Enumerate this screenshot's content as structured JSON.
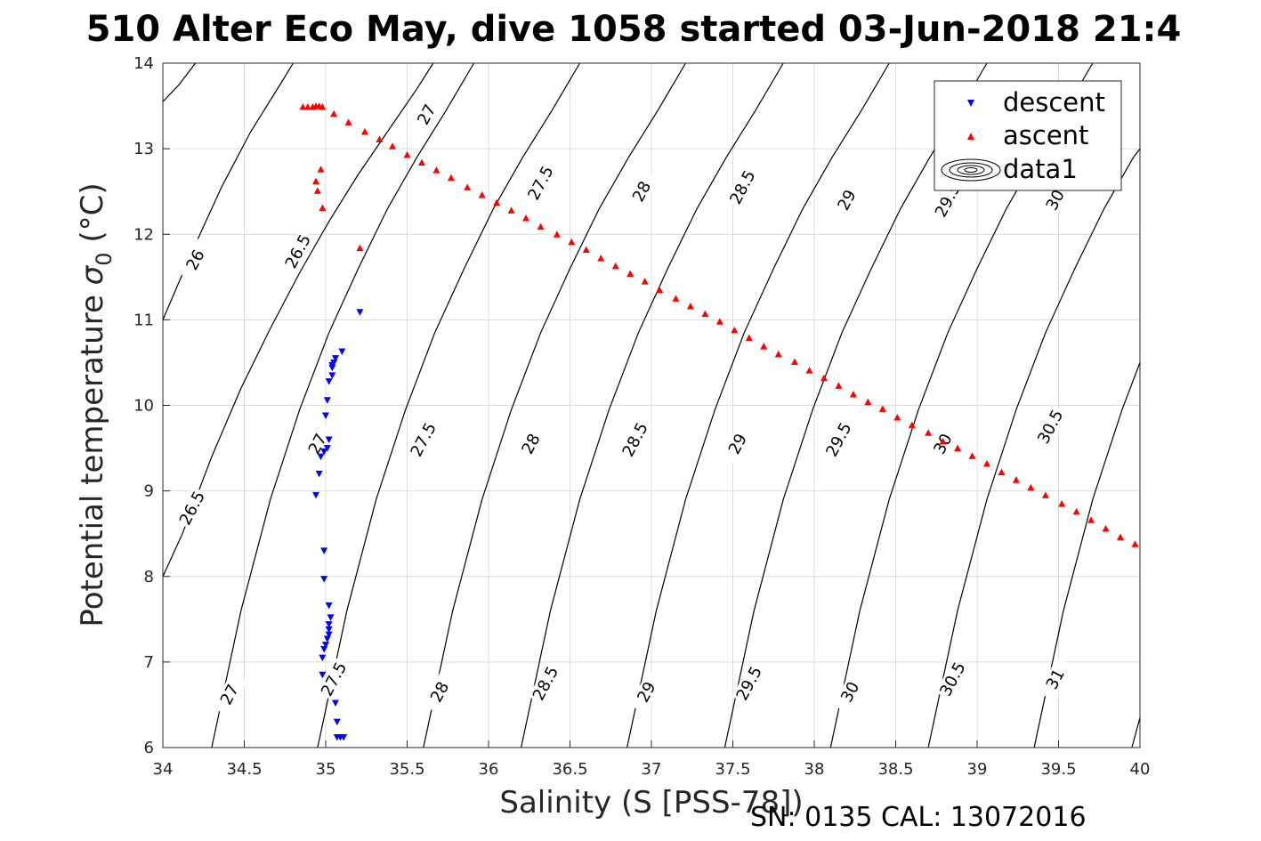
{
  "title": "510 Alter Eco May, dive 1058 started 03-Jun-2018 21:4",
  "footer": "SN: 0135  CAL: 13072016",
  "chart_data": {
    "type": "scatter",
    "xlabel": "Salinity (S [PSS-78])",
    "ylabel_main": "Potential temperature ",
    "ylabel_sym": "σ",
    "ylabel_sub": "0",
    "ylabel_unit": " (°C)",
    "xlim": [
      34,
      40
    ],
    "ylim": [
      6,
      14
    ],
    "xticks": [
      "34",
      "34.5",
      "35",
      "35.5",
      "36",
      "36.5",
      "37",
      "37.5",
      "38",
      "38.5",
      "39",
      "39.5",
      "40"
    ],
    "yticks": [
      "6",
      "7",
      "8",
      "9",
      "10",
      "11",
      "12",
      "13",
      "14"
    ],
    "grid": true,
    "legend_position": "top-right",
    "legend": [
      {
        "label": "descent",
        "marker": "triangle-down",
        "color": "#0000ff"
      },
      {
        "label": "ascent",
        "marker": "triangle-up",
        "color": "#ff0000"
      },
      {
        "label": "data1",
        "marker": "contour",
        "color": "#000000"
      }
    ],
    "series": [
      {
        "name": "descent",
        "color": "#0000ff",
        "points": [
          [
            35.21,
            11.09
          ],
          [
            35.1,
            10.63
          ],
          [
            35.06,
            10.55
          ],
          [
            35.05,
            10.5
          ],
          [
            35.04,
            10.47
          ],
          [
            35.04,
            10.44
          ],
          [
            35.04,
            10.35
          ],
          [
            35.02,
            10.28
          ],
          [
            35.01,
            10.06
          ],
          [
            35.0,
            9.88
          ],
          [
            35.02,
            9.6
          ],
          [
            35.01,
            9.5
          ],
          [
            34.99,
            9.46
          ],
          [
            34.97,
            9.4
          ],
          [
            34.96,
            9.2
          ],
          [
            34.94,
            8.95
          ],
          [
            34.99,
            8.3
          ],
          [
            34.99,
            7.97
          ],
          [
            35.02,
            7.66
          ],
          [
            35.03,
            7.52
          ],
          [
            35.02,
            7.44
          ],
          [
            35.02,
            7.38
          ],
          [
            35.02,
            7.32
          ],
          [
            35.01,
            7.27
          ],
          [
            35.0,
            7.2
          ],
          [
            34.99,
            7.15
          ],
          [
            34.98,
            7.05
          ],
          [
            34.98,
            6.85
          ],
          [
            35.06,
            6.52
          ],
          [
            35.07,
            6.3
          ],
          [
            35.07,
            6.12
          ],
          [
            35.09,
            6.12
          ],
          [
            35.11,
            6.12
          ]
        ]
      },
      {
        "name": "ascent",
        "color": "#ff0000",
        "points": [
          [
            34.86,
            13.49
          ],
          [
            34.89,
            13.49
          ],
          [
            34.92,
            13.49
          ],
          [
            34.94,
            13.5
          ],
          [
            34.96,
            13.5
          ],
          [
            34.98,
            13.49
          ],
          [
            35.05,
            13.41
          ],
          [
            35.14,
            13.31
          ],
          [
            35.24,
            13.2
          ],
          [
            35.33,
            13.11
          ],
          [
            35.41,
            13.03
          ],
          [
            35.5,
            12.93
          ],
          [
            35.59,
            12.84
          ],
          [
            35.68,
            12.75
          ],
          [
            35.77,
            12.66
          ],
          [
            35.87,
            12.55
          ],
          [
            35.96,
            12.46
          ],
          [
            36.05,
            12.37
          ],
          [
            36.14,
            12.28
          ],
          [
            36.23,
            12.19
          ],
          [
            36.32,
            12.09
          ],
          [
            36.42,
            12.0
          ],
          [
            36.51,
            11.91
          ],
          [
            36.6,
            11.82
          ],
          [
            36.69,
            11.72
          ],
          [
            36.78,
            11.63
          ],
          [
            36.87,
            11.54
          ],
          [
            36.96,
            11.45
          ],
          [
            37.05,
            11.35
          ],
          [
            37.15,
            11.25
          ],
          [
            37.24,
            11.16
          ],
          [
            37.33,
            11.07
          ],
          [
            37.42,
            10.98
          ],
          [
            37.51,
            10.88
          ],
          [
            37.6,
            10.79
          ],
          [
            37.69,
            10.69
          ],
          [
            37.78,
            10.6
          ],
          [
            37.88,
            10.51
          ],
          [
            37.97,
            10.41
          ],
          [
            38.06,
            10.32
          ],
          [
            38.15,
            10.23
          ],
          [
            38.24,
            10.13
          ],
          [
            38.33,
            10.04
          ],
          [
            38.42,
            9.96
          ],
          [
            38.51,
            9.86
          ],
          [
            38.6,
            9.77
          ],
          [
            38.7,
            9.68
          ],
          [
            38.79,
            9.58
          ],
          [
            38.88,
            9.5
          ],
          [
            38.97,
            9.41
          ],
          [
            39.06,
            9.32
          ],
          [
            39.15,
            9.22
          ],
          [
            39.24,
            9.13
          ],
          [
            39.33,
            9.04
          ],
          [
            39.42,
            8.95
          ],
          [
            39.52,
            8.85
          ],
          [
            39.61,
            8.76
          ],
          [
            39.7,
            8.66
          ],
          [
            39.79,
            8.56
          ],
          [
            39.88,
            8.46
          ],
          [
            39.97,
            8.38
          ],
          [
            34.94,
            12.62
          ],
          [
            34.95,
            12.51
          ],
          [
            34.97,
            12.76
          ],
          [
            34.98,
            12.31
          ],
          [
            35.21,
            11.84
          ]
        ]
      }
    ],
    "contours": [
      {
        "pts": [
          [
            34.3,
            6
          ],
          [
            34.48,
            7.6
          ],
          [
            34.66,
            8.9
          ],
          [
            34.84,
            9.95
          ],
          [
            35.02,
            10.85
          ],
          [
            35.2,
            11.6
          ],
          [
            35.38,
            12.3
          ],
          [
            35.56,
            12.9
          ],
          [
            35.74,
            13.45
          ],
          [
            35.91,
            14
          ]
        ],
        "labels": [
          {
            "text": "27",
            "at": [
              34.41,
              6.62
            ]
          },
          {
            "text": "27",
            "at": [
              34.95,
              9.55
            ]
          },
          {
            "text": "27",
            "at": [
              35.62,
              13.4
            ]
          }
        ]
      },
      {
        "pts": [
          [
            34.95,
            6
          ],
          [
            35.13,
            7.6
          ],
          [
            35.31,
            8.9
          ],
          [
            35.49,
            9.95
          ],
          [
            35.67,
            10.85
          ],
          [
            35.85,
            11.6
          ],
          [
            36.03,
            12.3
          ],
          [
            36.21,
            12.9
          ],
          [
            36.39,
            13.45
          ],
          [
            36.56,
            14
          ]
        ],
        "labels": [
          {
            "text": "27.5",
            "at": [
              35.05,
              6.8
            ]
          },
          {
            "text": "27.5",
            "at": [
              35.6,
              9.6
            ]
          },
          {
            "text": "27.5",
            "at": [
              36.32,
              12.6
            ]
          }
        ]
      },
      {
        "pts": [
          [
            35.6,
            6
          ],
          [
            35.78,
            7.6
          ],
          [
            35.96,
            8.9
          ],
          [
            36.14,
            9.95
          ],
          [
            36.32,
            10.85
          ],
          [
            36.5,
            11.6
          ],
          [
            36.68,
            12.3
          ],
          [
            36.86,
            12.9
          ],
          [
            37.04,
            13.45
          ],
          [
            37.21,
            14
          ]
        ],
        "labels": [
          {
            "text": "28",
            "at": [
              35.7,
              6.65
            ]
          },
          {
            "text": "28",
            "at": [
              36.26,
              9.55
            ]
          },
          {
            "text": "28",
            "at": [
              36.94,
              12.5
            ]
          }
        ]
      },
      {
        "pts": [
          [
            36.2,
            6
          ],
          [
            36.38,
            7.6
          ],
          [
            36.56,
            8.9
          ],
          [
            36.74,
            9.95
          ],
          [
            36.92,
            10.85
          ],
          [
            37.1,
            11.6
          ],
          [
            37.28,
            12.3
          ],
          [
            37.46,
            12.9
          ],
          [
            37.64,
            13.45
          ],
          [
            37.81,
            14
          ]
        ],
        "labels": [
          {
            "text": "28.5",
            "at": [
              36.35,
              6.75
            ]
          },
          {
            "text": "28.5",
            "at": [
              36.9,
              9.6
            ]
          },
          {
            "text": "28.5",
            "at": [
              37.56,
              12.55
            ]
          }
        ]
      },
      {
        "pts": [
          [
            36.85,
            6
          ],
          [
            37.03,
            7.6
          ],
          [
            37.21,
            8.9
          ],
          [
            37.39,
            9.95
          ],
          [
            37.57,
            10.85
          ],
          [
            37.75,
            11.6
          ],
          [
            37.93,
            12.3
          ],
          [
            38.11,
            12.9
          ],
          [
            38.29,
            13.45
          ],
          [
            38.46,
            14
          ]
        ],
        "labels": [
          {
            "text": "29",
            "at": [
              36.97,
              6.65
            ]
          },
          {
            "text": "29",
            "at": [
              37.53,
              9.55
            ]
          },
          {
            "text": "29",
            "at": [
              38.2,
              12.4
            ]
          }
        ]
      },
      {
        "pts": [
          [
            37.45,
            6
          ],
          [
            37.63,
            7.6
          ],
          [
            37.81,
            8.9
          ],
          [
            37.99,
            9.95
          ],
          [
            38.17,
            10.85
          ],
          [
            38.35,
            11.6
          ],
          [
            38.53,
            12.3
          ],
          [
            38.71,
            12.9
          ],
          [
            38.89,
            13.45
          ],
          [
            39.06,
            14
          ]
        ],
        "labels": [
          {
            "text": "29.5",
            "at": [
              37.6,
              6.75
            ]
          },
          {
            "text": "29.5",
            "at": [
              38.15,
              9.6
            ]
          },
          {
            "text": "29.5",
            "at": [
              38.82,
              12.4
            ]
          }
        ]
      },
      {
        "pts": [
          [
            38.1,
            6
          ],
          [
            38.28,
            7.6
          ],
          [
            38.46,
            8.9
          ],
          [
            38.64,
            9.95
          ],
          [
            38.82,
            10.85
          ],
          [
            39.0,
            11.6
          ],
          [
            39.18,
            12.3
          ],
          [
            39.36,
            12.9
          ],
          [
            39.54,
            13.45
          ],
          [
            39.71,
            14
          ]
        ],
        "labels": [
          {
            "text": "30",
            "at": [
              38.22,
              6.65
            ]
          },
          {
            "text": "30",
            "at": [
              38.79,
              9.55
            ]
          },
          {
            "text": "30",
            "at": [
              39.48,
              12.4
            ]
          }
        ]
      },
      {
        "pts": [
          [
            38.7,
            6
          ],
          [
            38.88,
            7.6
          ],
          [
            39.06,
            8.9
          ],
          [
            39.24,
            9.95
          ],
          [
            39.42,
            10.85
          ],
          [
            39.6,
            11.6
          ],
          [
            39.78,
            12.3
          ],
          [
            39.96,
            12.9
          ],
          [
            40,
            13.0
          ]
        ],
        "labels": [
          {
            "text": "30.5",
            "at": [
              38.85,
              6.8
            ]
          },
          {
            "text": "30.5",
            "at": [
              39.45,
              9.75
            ]
          }
        ]
      },
      {
        "pts": [
          [
            39.35,
            6
          ],
          [
            39.53,
            7.6
          ],
          [
            39.71,
            8.9
          ],
          [
            39.89,
            9.95
          ],
          [
            40,
            10.5
          ]
        ],
        "labels": [
          {
            "text": "31",
            "at": [
              39.48,
              6.8
            ]
          }
        ]
      },
      {
        "pts": [
          [
            39.95,
            6
          ],
          [
            40,
            6.35
          ]
        ],
        "labels": []
      },
      {
        "pts": [
          [
            34,
            8.0
          ],
          [
            34.12,
            8.5
          ],
          [
            34.3,
            9.4
          ],
          [
            34.48,
            10.2
          ],
          [
            34.66,
            10.9
          ],
          [
            34.84,
            11.55
          ],
          [
            35.02,
            12.15
          ],
          [
            35.2,
            12.7
          ],
          [
            35.38,
            13.2
          ],
          [
            35.56,
            13.7
          ],
          [
            35.66,
            14
          ]
        ],
        "labels": [
          {
            "text": "26.5",
            "at": [
              34.18,
              8.8
            ]
          },
          {
            "text": "26.5",
            "at": [
              34.83,
              11.8
            ]
          }
        ]
      },
      {
        "pts": [
          [
            34,
            11.0
          ],
          [
            34.18,
            11.8
          ],
          [
            34.36,
            12.55
          ],
          [
            34.54,
            13.2
          ],
          [
            34.72,
            13.75
          ],
          [
            34.8,
            14
          ]
        ],
        "labels": [
          {
            "text": "26",
            "at": [
              34.2,
              11.7
            ]
          }
        ]
      },
      {
        "pts": [
          [
            34,
            13.55
          ],
          [
            34.1,
            13.75
          ],
          [
            34.2,
            14
          ]
        ],
        "labels": []
      }
    ]
  }
}
